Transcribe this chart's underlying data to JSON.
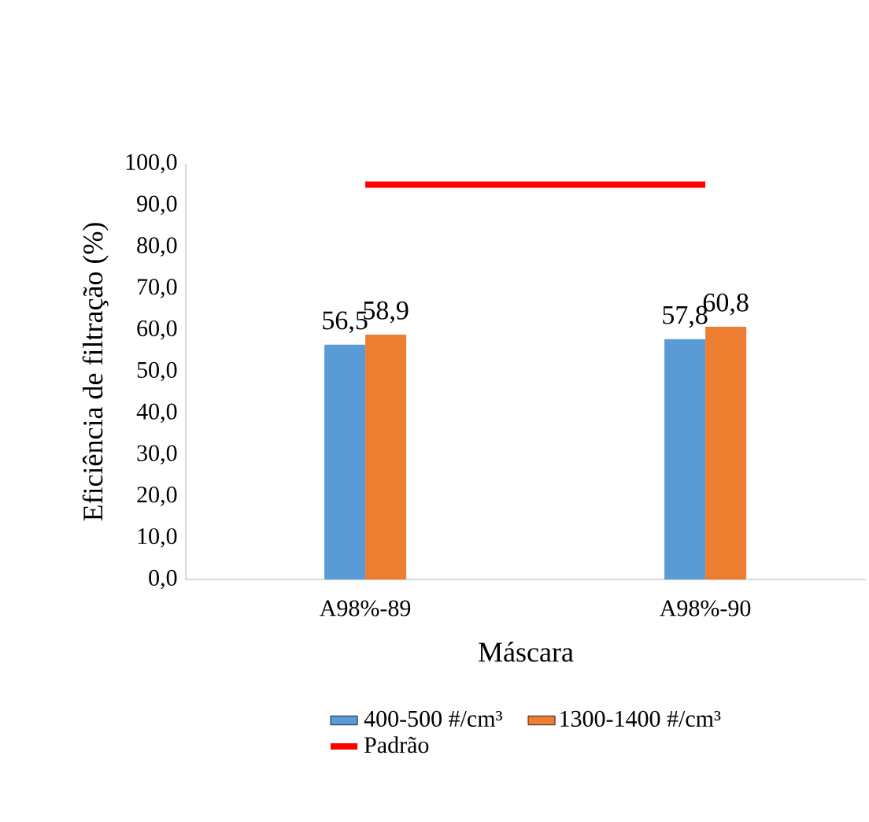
{
  "chart_data": {
    "type": "bar",
    "xlabel": "Máscara",
    "ylabel": "Eficiência de filtração (%)",
    "categories": [
      "A98%-89",
      "A98%-90"
    ],
    "series": [
      {
        "name": "400-500 #/cm³",
        "color": "#5b9bd5",
        "values": [
          56.5,
          57.8
        ],
        "value_labels": [
          "56,5",
          "57,8"
        ]
      },
      {
        "name": "1300-1400 #/cm³",
        "color": "#ed7d31",
        "values": [
          58.9,
          60.8
        ],
        "value_labels": [
          "58,9",
          "60,8"
        ]
      },
      {
        "name": "Padrão",
        "type": "line",
        "color": "#ff0000",
        "values": [
          95,
          95
        ],
        "marker": "none",
        "line_style": "solid"
      }
    ],
    "ylim": [
      0,
      100
    ],
    "yticks": [
      {
        "value": 0,
        "label": "0,0"
      },
      {
        "value": 10,
        "label": "10,0"
      },
      {
        "value": 20,
        "label": "20,0"
      },
      {
        "value": 30,
        "label": "30,0"
      },
      {
        "value": 40,
        "label": "40,0"
      },
      {
        "value": 50,
        "label": "50,0"
      },
      {
        "value": 60,
        "label": "60,0"
      },
      {
        "value": 70,
        "label": "70,0"
      },
      {
        "value": 80,
        "label": "80,0"
      },
      {
        "value": 90,
        "label": "90,0"
      },
      {
        "value": 100,
        "label": "100,0"
      }
    ],
    "grid": false,
    "legend": "bottom"
  }
}
